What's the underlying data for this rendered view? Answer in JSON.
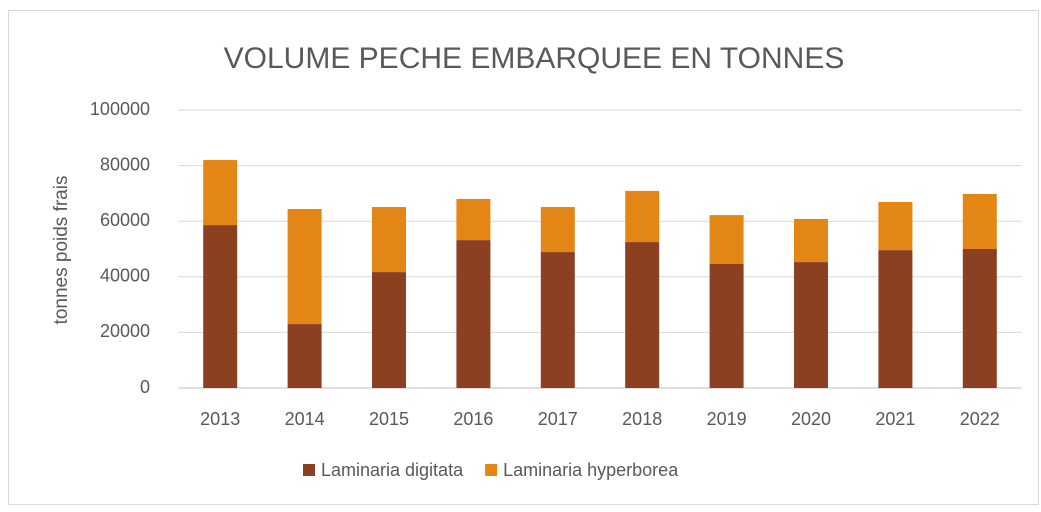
{
  "chart_data": {
    "type": "stacked_bar",
    "title": "VOLUME PECHE EMBARQUEE EN TONNES",
    "y_label": "tonnes poids frais",
    "categories": [
      "2013",
      "2014",
      "2015",
      "2016",
      "2017",
      "2018",
      "2019",
      "2020",
      "2021",
      "2022"
    ],
    "series": [
      {
        "name": "Laminaria digitata",
        "color": "#8b4022",
        "values": [
          58600,
          23000,
          41700,
          53200,
          48900,
          52500,
          44600,
          45300,
          49600,
          50000
        ]
      },
      {
        "name": "Laminaria hyperborea",
        "color": "#e38615",
        "values": [
          23400,
          41400,
          23400,
          14800,
          16200,
          18400,
          17600,
          15500,
          17300,
          19800
        ]
      }
    ],
    "ylim": [
      0,
      100000
    ],
    "yticks": [
      0,
      20000,
      40000,
      60000,
      80000,
      100000
    ],
    "grid": true,
    "legend": "bottom"
  }
}
